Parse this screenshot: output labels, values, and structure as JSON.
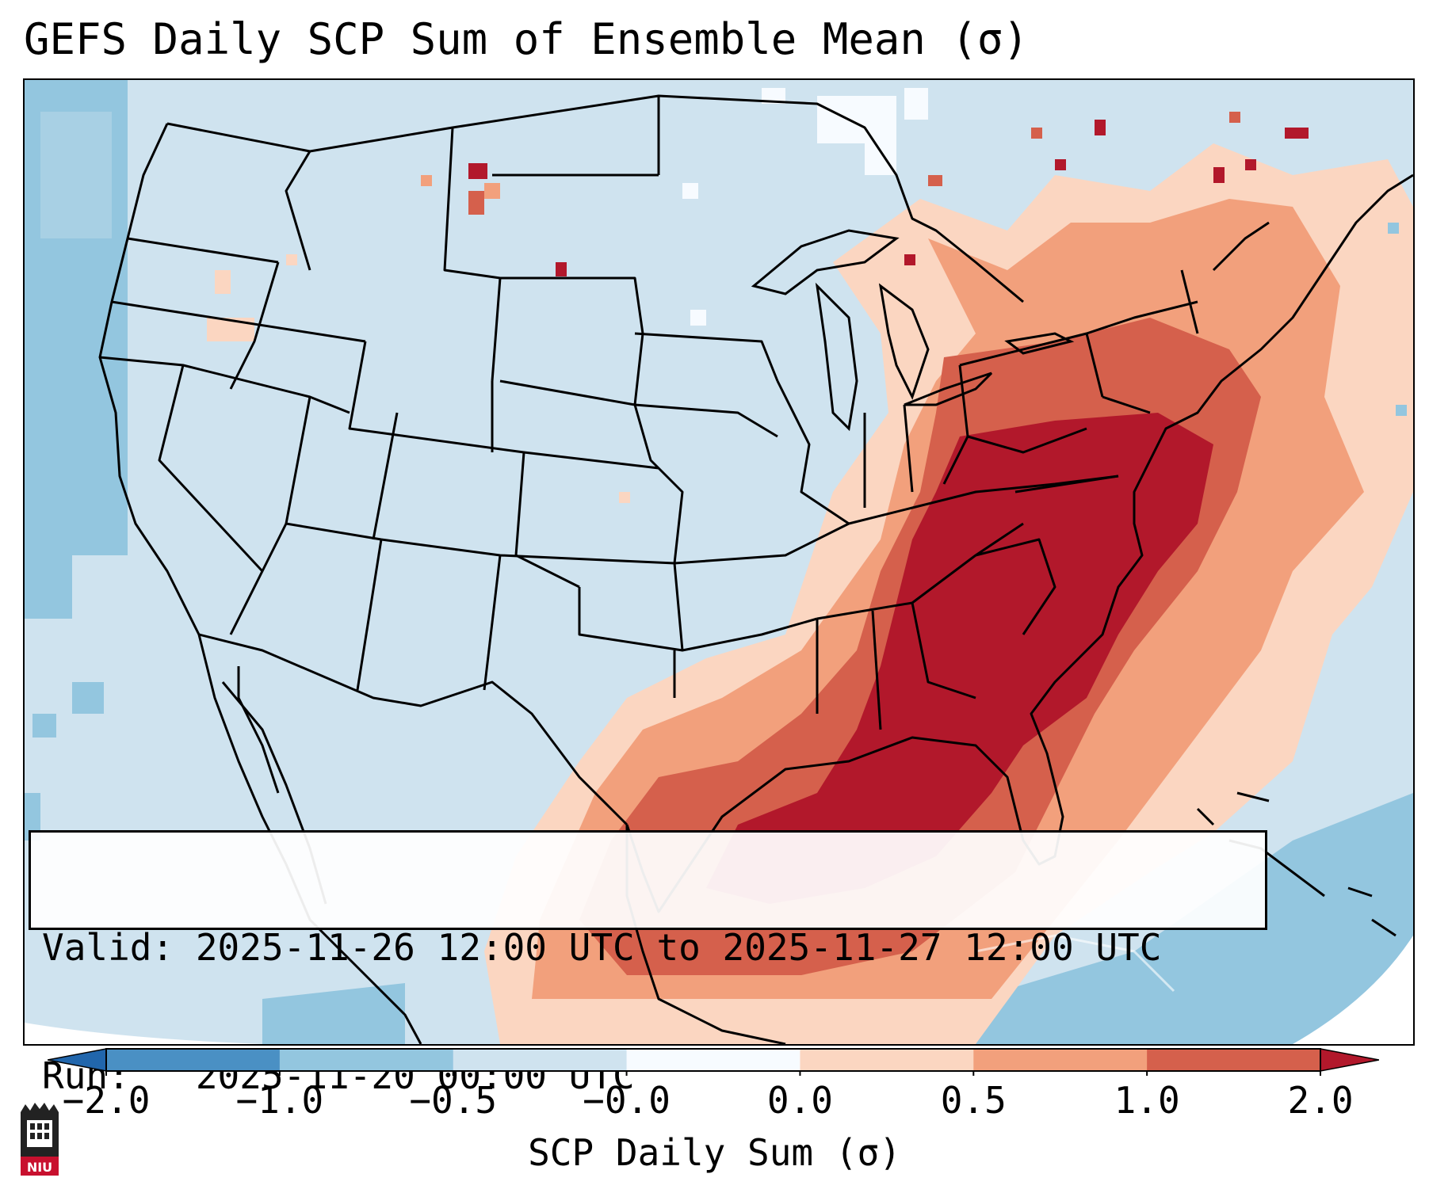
{
  "title": "GEFS Daily SCP Sum of Ensemble Mean (σ)",
  "info": {
    "valid_line": "Valid: 2025-11-26 12:00 UTC to 2025-11-27 12:00 UTC",
    "run_line": "Run:   2025-11-20 00:00 UTC"
  },
  "colorbar": {
    "label": "SCP Daily Sum (σ)",
    "ticks": [
      "−2.0",
      "−1.0",
      "−0.5",
      "−0.0",
      "0.0",
      "0.5",
      "1.0",
      "2.0"
    ],
    "colors": [
      "#4a90c4",
      "#93c6df",
      "#cfe3ef",
      "#f7fbff",
      "#fbd6c1",
      "#f2a07c",
      "#d5604c",
      "#b2182b"
    ]
  },
  "logo": {
    "text": "NIU"
  },
  "map": {
    "background_color": "#cfe3ef",
    "ocean_low_color": "#93c6df",
    "max_color": "#b2182b",
    "high_color": "#d5604c",
    "mid_color": "#f2a07c",
    "low_color": "#fbd6c1"
  }
}
